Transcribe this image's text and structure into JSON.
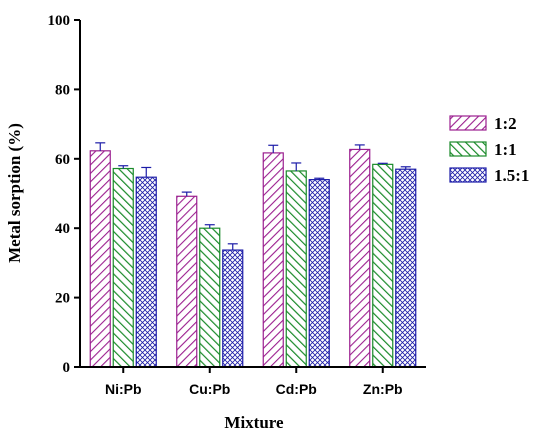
{
  "chart_data": {
    "type": "bar",
    "xlabel": "Mixture",
    "ylabel": "Metal sorption (%)",
    "ylim": [
      0,
      100
    ],
    "yticks": [
      0,
      20,
      40,
      60,
      80,
      100
    ],
    "categories": [
      "Ni:Pb",
      "Cu:Pb",
      "Cd:Pb",
      "Zn:Pb"
    ],
    "legend_position": "right",
    "series": [
      {
        "name": "1:2",
        "color": "#9b1f8f",
        "pattern": "diagonal-hatch-right",
        "values": [
          62.3,
          49.2,
          61.7,
          62.7
        ],
        "errors": [
          2.3,
          1.2,
          2.2,
          1.3
        ]
      },
      {
        "name": "1:1",
        "color": "#1a8a2a",
        "pattern": "diagonal-hatch-left",
        "values": [
          57.2,
          40.0,
          56.5,
          58.4
        ],
        "errors": [
          0.8,
          1.0,
          2.3,
          0.3
        ]
      },
      {
        "name": "1.5:1",
        "color": "#1c1ca8",
        "pattern": "crosshatch",
        "values": [
          54.7,
          33.7,
          54.0,
          57.0
        ],
        "errors": [
          2.8,
          1.8,
          0.4,
          0.7
        ]
      }
    ]
  }
}
